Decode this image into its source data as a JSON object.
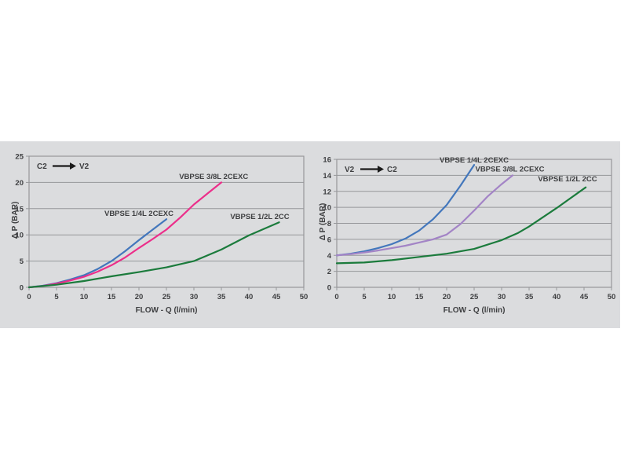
{
  "page": {
    "background_color": "#ffffff",
    "panel_color": "#dbdcde",
    "grid_color": "#96979a",
    "text_color": "#3e3f41"
  },
  "chart_data": [
    {
      "type": "line",
      "direction_label": {
        "from": "C2",
        "to": "V2"
      },
      "xlabel": "FLOW - Q (l/min)",
      "ylabel": "Δ P (BAR)",
      "xlim": [
        0,
        50
      ],
      "ylim": [
        0,
        25
      ],
      "xticks": [
        0,
        5,
        10,
        15,
        20,
        25,
        30,
        35,
        40,
        45,
        50
      ],
      "yticks": [
        0,
        5,
        10,
        15,
        20,
        25
      ],
      "grid": "horizontal",
      "legend_position": "inline-labels",
      "series": [
        {
          "name": "VBPSE 1/4L 2CEXC",
          "color": "#4377bc",
          "points": [
            [
              0,
              0
            ],
            [
              2.5,
              0.3
            ],
            [
              5,
              0.8
            ],
            [
              7.5,
              1.5
            ],
            [
              10,
              2.3
            ],
            [
              12.5,
              3.5
            ],
            [
              15,
              5.0
            ],
            [
              17.5,
              6.9
            ],
            [
              20,
              9.0
            ],
            [
              22.5,
              11.0
            ],
            [
              25,
              13.0
            ]
          ],
          "label_pos": [
            20,
            14.1
          ]
        },
        {
          "name": "VBPSE 3/8L 2CEXC",
          "color": "#ec2e8a",
          "points": [
            [
              0,
              0
            ],
            [
              2.5,
              0.25
            ],
            [
              5,
              0.7
            ],
            [
              7.5,
              1.3
            ],
            [
              10,
              2.0
            ],
            [
              12.5,
              3.0
            ],
            [
              15,
              4.2
            ],
            [
              17.5,
              5.7
            ],
            [
              20,
              7.5
            ],
            [
              22.5,
              9.2
            ],
            [
              25,
              11.0
            ],
            [
              27.5,
              13.3
            ],
            [
              30,
              15.8
            ],
            [
              32.5,
              17.9
            ],
            [
              35,
              20.0
            ]
          ],
          "label_pos": [
            33.6,
            21.1
          ]
        },
        {
          "name": "VBPSE 1/2L 2CC",
          "color": "#1b7b3c",
          "points": [
            [
              0,
              0
            ],
            [
              5,
              0.5
            ],
            [
              10,
              1.2
            ],
            [
              15,
              2.1
            ],
            [
              20,
              2.9
            ],
            [
              25,
              3.8
            ],
            [
              30,
              5.0
            ],
            [
              35,
              7.2
            ],
            [
              40,
              9.9
            ],
            [
              45.5,
              12.4
            ]
          ],
          "label_pos": [
            42,
            13.5
          ]
        }
      ]
    },
    {
      "type": "line",
      "direction_label": {
        "from": "V2",
        "to": "C2"
      },
      "xlabel": "FLOW - Q (l/min)",
      "ylabel": "Δ P (BAR)",
      "xlim": [
        0,
        50
      ],
      "ylim": [
        0,
        16
      ],
      "xticks": [
        0,
        5,
        10,
        15,
        20,
        25,
        30,
        35,
        40,
        45,
        50
      ],
      "yticks": [
        0,
        2,
        4,
        6,
        8,
        10,
        12,
        14,
        16
      ],
      "grid": "horizontal",
      "legend_position": "inline-labels",
      "series": [
        {
          "name": "VBPSE 1/4L 2CEXC",
          "color": "#4377bc",
          "points": [
            [
              0,
              4.0
            ],
            [
              2.5,
              4.2
            ],
            [
              5,
              4.5
            ],
            [
              7.5,
              4.9
            ],
            [
              10,
              5.4
            ],
            [
              12.5,
              6.1
            ],
            [
              15,
              7.1
            ],
            [
              17.5,
              8.5
            ],
            [
              20,
              10.3
            ],
            [
              22.5,
              12.7
            ],
            [
              25,
              15.3
            ]
          ],
          "label_pos": [
            25,
            15.9
          ]
        },
        {
          "name": "VBPSE 3/8L 2CEXC",
          "color": "#a384c6",
          "points": [
            [
              0,
              4.0
            ],
            [
              2.5,
              4.15
            ],
            [
              5,
              4.35
            ],
            [
              7.5,
              4.6
            ],
            [
              10,
              4.9
            ],
            [
              12.5,
              5.2
            ],
            [
              15,
              5.6
            ],
            [
              17.5,
              6.0
            ],
            [
              20,
              6.6
            ],
            [
              22.5,
              7.9
            ],
            [
              25,
              9.6
            ],
            [
              27.5,
              11.4
            ],
            [
              30,
              12.9
            ],
            [
              32,
              14.0
            ]
          ],
          "label_pos": [
            31.5,
            14.75
          ]
        },
        {
          "name": "VBPSE 1/2L 2CC",
          "color": "#1b7b3c",
          "points": [
            [
              0,
              3.0
            ],
            [
              5,
              3.1
            ],
            [
              10,
              3.4
            ],
            [
              15,
              3.8
            ],
            [
              20,
              4.2
            ],
            [
              25,
              4.8
            ],
            [
              30,
              5.9
            ],
            [
              33,
              6.8
            ],
            [
              35,
              7.6
            ],
            [
              40,
              9.9
            ],
            [
              45.3,
              12.5
            ]
          ],
          "label_pos": [
            42,
            13.55
          ]
        }
      ]
    }
  ]
}
